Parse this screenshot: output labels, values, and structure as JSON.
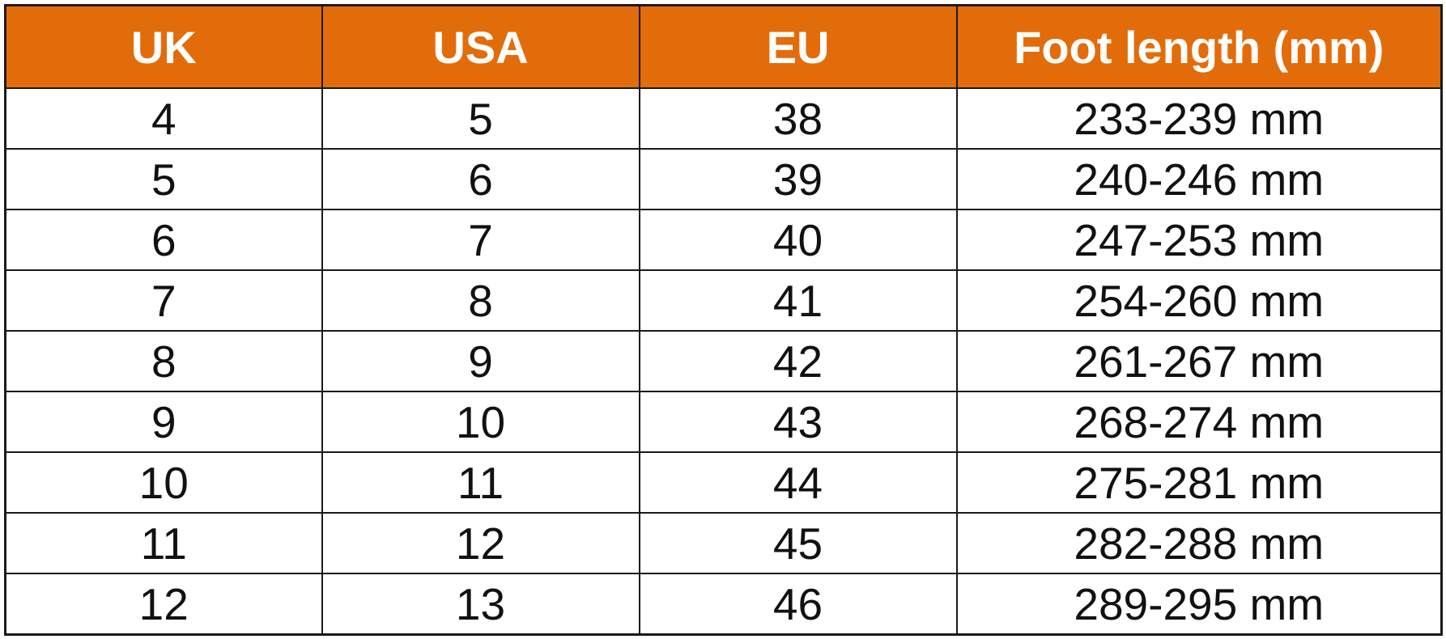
{
  "chart_data": {
    "type": "table",
    "header_color": "#e36c0a",
    "columns": [
      "UK",
      "USA",
      "EU",
      "Foot length (mm)"
    ],
    "rows": [
      [
        "4",
        "5",
        "38",
        "233-239 mm"
      ],
      [
        "5",
        "6",
        "39",
        "240-246 mm"
      ],
      [
        "6",
        "7",
        "40",
        "247-253 mm"
      ],
      [
        "7",
        "8",
        "41",
        "254-260 mm"
      ],
      [
        "8",
        "9",
        "42",
        "261-267 mm"
      ],
      [
        "9",
        "10",
        "43",
        "268-274 mm"
      ],
      [
        "10",
        "11",
        "44",
        "275-281 mm"
      ],
      [
        "11",
        "12",
        "45",
        "282-288 mm"
      ],
      [
        "12",
        "13",
        "46",
        "289-295 mm"
      ]
    ]
  }
}
